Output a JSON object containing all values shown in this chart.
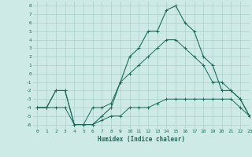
{
  "xlabel": "Humidex (Indice chaleur)",
  "bg_color": "#ceeae7",
  "grid_color": "#b0d4d0",
  "line_color": "#1a6b5a",
  "xmin": 0,
  "xmax": 23,
  "ymin": -6.5,
  "ymax": 8.5,
  "x_ticks": [
    0,
    1,
    2,
    3,
    4,
    5,
    6,
    7,
    8,
    9,
    10,
    11,
    12,
    13,
    14,
    15,
    16,
    17,
    18,
    19,
    20,
    21,
    22,
    23
  ],
  "y_ticks": [
    8,
    7,
    6,
    5,
    4,
    3,
    2,
    1,
    0,
    -1,
    -2,
    -3,
    -4,
    -5,
    -6
  ],
  "series_x": [
    0,
    1,
    2,
    3,
    4,
    5,
    6,
    7,
    8,
    9,
    10,
    11,
    12,
    13,
    14,
    15,
    16,
    17,
    18,
    19,
    20,
    21,
    22,
    23
  ],
  "series1": [
    -4,
    -4,
    -4,
    -4,
    -6,
    -6,
    -6,
    -5.5,
    -5,
    -5,
    -4,
    -4,
    -4,
    -3.5,
    -3,
    -3,
    -3,
    -3,
    -3,
    -3,
    -3,
    -3,
    -4,
    -5
  ],
  "series2": [
    -4,
    -4,
    -2,
    -2,
    -6,
    -6,
    -6,
    -5,
    -4,
    -1,
    2,
    3,
    5,
    5,
    7.5,
    8,
    6,
    5,
    2,
    1,
    -2,
    -2,
    -3,
    -5
  ],
  "series3": [
    -4,
    -4,
    -2,
    -2,
    -6,
    -6,
    -4,
    -4,
    -3.5,
    -1,
    0,
    1,
    2,
    3,
    4,
    4,
    3,
    2,
    1,
    -1,
    -1,
    -2,
    -3,
    -5
  ]
}
